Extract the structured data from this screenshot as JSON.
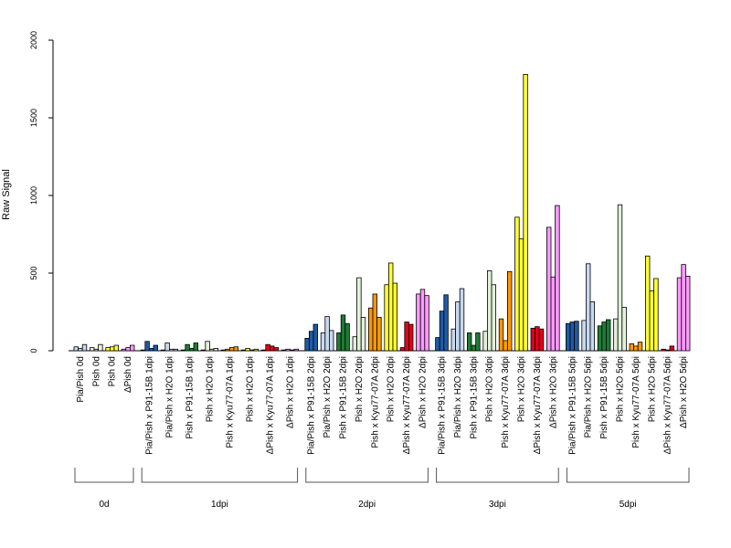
{
  "chart_data": {
    "type": "bar",
    "ylabel": "Raw Signal",
    "xlabel": "",
    "title": "",
    "ylim": [
      0,
      2000
    ],
    "yticks": [
      0,
      500,
      1000,
      1500,
      2000
    ],
    "grid": false,
    "legend": "none",
    "groups": [
      {
        "label": "0d",
        "categories": [
          {
            "label": "Pia/Pish 0d",
            "color": "#c6d9ef",
            "values": [
              25,
              15,
              40
            ]
          },
          {
            "label": "Pish 0d",
            "color": "#e2f0d9",
            "values": [
              20,
              10,
              40
            ]
          },
          {
            "label": "Pish 0d",
            "color": "#ffff33",
            "values": [
              20,
              25,
              35
            ]
          },
          {
            "label": "ΔPish 0d",
            "color": "#ff99ff",
            "values": [
              10,
              20,
              35
            ]
          }
        ]
      },
      {
        "label": "1dpi",
        "categories": [
          {
            "label": "Pia/Pish x P91-15B 1dpi",
            "color": "#1f5aa6",
            "values": [
              5,
              60,
              15,
              35
            ]
          },
          {
            "label": "Pia/Pish x H2O 1dpi",
            "color": "#c6d9ef",
            "values": [
              5,
              50,
              10,
              10
            ]
          },
          {
            "label": "Pish x P91-15B 1dpi",
            "color": "#1e7b34",
            "values": [
              5,
              40,
              15,
              50
            ]
          },
          {
            "label": "Pish x H2O 1dpi",
            "color": "#e2f0d9",
            "values": [
              5,
              60,
              10,
              15
            ]
          },
          {
            "label": "Pish x Kyu77-07A 1dpi",
            "color": "#ff9900",
            "values": [
              5,
              10,
              20,
              25
            ]
          },
          {
            "label": "Pish x H2O 1dpi",
            "color": "#ffff33",
            "values": [
              5,
              15,
              5,
              10
            ]
          },
          {
            "label": "ΔPish x Kyu77-07A 1dpi",
            "color": "#e3001b",
            "values": [
              5,
              40,
              30,
              20
            ]
          },
          {
            "label": "ΔPish x H2O 1dpi",
            "color": "#ff99ff",
            "values": [
              5,
              10,
              5,
              10
            ]
          }
        ]
      },
      {
        "label": "2dpi",
        "categories": [
          {
            "label": "Pia/Pish x P91-15B 2dpi",
            "color": "#1f5aa6",
            "values": [
              80,
              125,
              170
            ]
          },
          {
            "label": "Pia/Pish x H2O 2dpi",
            "color": "#c6d9ef",
            "values": [
              115,
              220,
              130
            ]
          },
          {
            "label": "Pish x P91-15B 2dpi",
            "color": "#1e7b34",
            "values": [
              115,
              230,
              175
            ]
          },
          {
            "label": "Pish x H2O 2dpi",
            "color": "#e2f0d9",
            "values": [
              90,
              470,
              215
            ]
          },
          {
            "label": "Pish x Kyu77-07A 2dpi",
            "color": "#ff9900",
            "values": [
              275,
              365,
              215
            ]
          },
          {
            "label": "Pish x H2O 2dpi",
            "color": "#ffff33",
            "values": [
              425,
              565,
              435
            ]
          },
          {
            "label": "ΔPish x Kyu77-07A 2dpi",
            "color": "#e3001b",
            "values": [
              20,
              185,
              170
            ]
          },
          {
            "label": "ΔPish x H2O 2dpi",
            "color": "#ff99ff",
            "values": [
              365,
              395,
              355
            ]
          }
        ]
      },
      {
        "label": "3dpi",
        "categories": [
          {
            "label": "Pia/Pish x P91-15B 3dpi",
            "color": "#1f5aa6",
            "values": [
              85,
              255,
              360
            ]
          },
          {
            "label": "Pia/Pish x H2O 3dpi",
            "color": "#c6d9ef",
            "values": [
              140,
              315,
              400
            ]
          },
          {
            "label": "Pish x P91-15B 3dpi",
            "color": "#1e7b34",
            "values": [
              115,
              35,
              115
            ]
          },
          {
            "label": "Pish x H2O 3dpi",
            "color": "#e2f0d9",
            "values": [
              125,
              515,
              425
            ]
          },
          {
            "label": "Pish x Kyu77-07A 3dpi",
            "color": "#ff9900",
            "values": [
              205,
              65,
              510
            ]
          },
          {
            "label": "Pish x H2O 3dpi",
            "color": "#ffff33",
            "values": [
              860,
              720,
              1780
            ]
          },
          {
            "label": "ΔPish x Kyu77-07A 3dpi",
            "color": "#e3001b",
            "values": [
              145,
              155,
              140
            ]
          },
          {
            "label": "ΔPish x H2O 3dpi",
            "color": "#ff99ff",
            "values": [
              795,
              475,
              935
            ]
          }
        ]
      },
      {
        "label": "5dpi",
        "categories": [
          {
            "label": "Pia/Pish x P91-15B 5dpi",
            "color": "#1f5aa6",
            "values": [
              175,
              185,
              190
            ]
          },
          {
            "label": "Pia/Pish x H2O 5dpi",
            "color": "#c6d9ef",
            "values": [
              195,
              560,
              315
            ]
          },
          {
            "label": "Pish x P91-15B 5dpi",
            "color": "#1e7b34",
            "values": [
              160,
              185,
              200
            ]
          },
          {
            "label": "Pish x H2O 5dpi",
            "color": "#e2f0d9",
            "values": [
              205,
              940,
              280
            ]
          },
          {
            "label": "Pish x Kyu77-07A 5dpi",
            "color": "#ff9900",
            "values": [
              45,
              30,
              55
            ]
          },
          {
            "label": "Pish x H2O 5dpi",
            "color": "#ffff33",
            "values": [
              610,
              385,
              465
            ]
          },
          {
            "label": "ΔPish x Kyu77-07A 5dpi",
            "color": "#e3001b",
            "values": [
              10,
              5,
              30
            ]
          },
          {
            "label": "ΔPish x H2O 5dpi",
            "color": "#ff99ff",
            "values": [
              470,
              555,
              480
            ]
          }
        ]
      }
    ]
  }
}
